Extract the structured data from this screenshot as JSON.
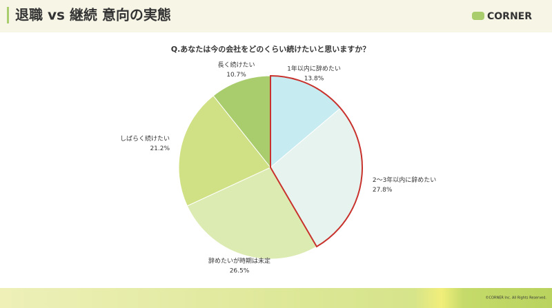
{
  "header": {
    "title": "退職 vs 継続 意向の実態",
    "logo": "CORNER"
  },
  "chart_data": {
    "type": "pie",
    "title": "Q.あなたは今の会社をどのくらい続けたいと思いますか？",
    "categories": [
      "1年以内に辞めたい",
      "2〜3年以内に辞めたい",
      "辞めたいが時期は未定",
      "しばらく続けたい",
      "長く続けたい"
    ],
    "values": [
      13.8,
      27.8,
      26.5,
      21.2,
      10.7
    ],
    "value_labels": [
      "13.8%",
      "27.8%",
      "26.5%",
      "21.2%",
      "10.7%"
    ],
    "colors": [
      "#c6ecf1",
      "#e7f3ee",
      "#dcebb2",
      "#cfe184",
      "#a9cd6c"
    ],
    "highlighted": [
      0,
      1
    ],
    "highlight_color": "#c8312c"
  },
  "footer": {
    "copyright": "©CORNER Inc. All Rights Reserved."
  }
}
